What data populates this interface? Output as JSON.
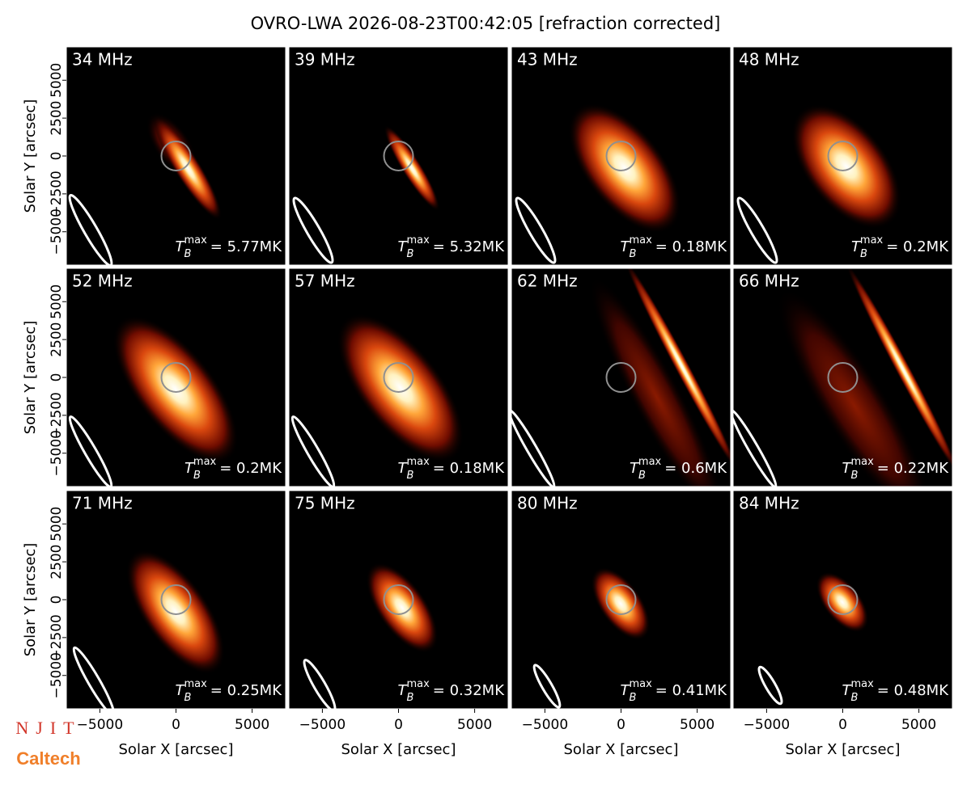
{
  "title": "OVRO-LWA 2026-08-23T00:42:05 [refraction corrected]",
  "logos": {
    "top": "NJIT",
    "bottom": "Caltech"
  },
  "chart_data": [
    {
      "type": "image",
      "title": "34 MHz",
      "annotation": {
        "symbol": "T",
        "subscript": "B",
        "superscript": "max",
        "text": "= 5.77MK"
      },
      "xlim": [
        -7200,
        7200
      ],
      "ylim": [
        -7200,
        7200
      ],
      "ylabel": "Solar Y [arcsec]",
      "yticks": [
        {
          "value": -5000,
          "label": "−5000"
        },
        {
          "value": -2500,
          "label": "−2500"
        },
        0,
        2500,
        5000
      ]
    },
    {
      "type": "image",
      "title": "39 MHz",
      "annotation": {
        "symbol": "T",
        "subscript": "B",
        "superscript": "max",
        "text": "= 5.32MK"
      },
      "xlim": [
        -7200,
        7200
      ],
      "ylim": [
        -7200,
        7200
      ]
    },
    {
      "type": "image",
      "title": "43 MHz",
      "annotation": {
        "symbol": "T",
        "subscript": "B",
        "superscript": "max",
        "text": "= 0.18MK"
      },
      "xlim": [
        -7200,
        7200
      ],
      "ylim": [
        -7200,
        7200
      ]
    },
    {
      "type": "image",
      "title": "48 MHz",
      "annotation": {
        "symbol": "T",
        "subscript": "B",
        "superscript": "max",
        "text": "= 0.2MK"
      },
      "xlim": [
        -7200,
        7200
      ],
      "ylim": [
        -7200,
        7200
      ]
    },
    {
      "type": "image",
      "title": "52 MHz",
      "annotation": {
        "symbol": "T",
        "subscript": "B",
        "superscript": "max",
        "text": "= 0.2MK"
      },
      "xlim": [
        -7200,
        7200
      ],
      "ylim": [
        -7200,
        7200
      ],
      "ylabel": "Solar Y [arcsec]",
      "yticks": [
        {
          "value": -5000,
          "label": "−5000"
        },
        {
          "value": -2500,
          "label": "−2500"
        },
        0,
        2500,
        5000
      ]
    },
    {
      "type": "image",
      "title": "57 MHz",
      "annotation": {
        "symbol": "T",
        "subscript": "B",
        "superscript": "max",
        "text": "= 0.18MK"
      },
      "xlim": [
        -7200,
        7200
      ],
      "ylim": [
        -7200,
        7200
      ]
    },
    {
      "type": "image",
      "title": "62 MHz",
      "annotation": {
        "symbol": "T",
        "subscript": "B",
        "superscript": "max",
        "text": "= 0.6MK"
      },
      "xlim": [
        -7200,
        7200
      ],
      "ylim": [
        -7200,
        7200
      ]
    },
    {
      "type": "image",
      "title": "66 MHz",
      "annotation": {
        "symbol": "T",
        "subscript": "B",
        "superscript": "max",
        "text": "= 0.22MK"
      },
      "xlim": [
        -7200,
        7200
      ],
      "ylim": [
        -7200,
        7200
      ]
    },
    {
      "type": "image",
      "title": "71 MHz",
      "annotation": {
        "symbol": "T",
        "subscript": "B",
        "superscript": "max",
        "text": "= 0.25MK"
      },
      "xlim": [
        -7200,
        7200
      ],
      "ylim": [
        -7200,
        7200
      ],
      "ylabel": "Solar Y [arcsec]",
      "yticks": [
        {
          "value": -5000,
          "label": "−5000"
        },
        {
          "value": -2500,
          "label": "−2500"
        },
        0,
        2500,
        5000
      ],
      "xlabel": "Solar X [arcsec]",
      "xticks": [
        {
          "value": -5000,
          "label": "−5000"
        },
        0,
        5000
      ]
    },
    {
      "type": "image",
      "title": "75 MHz",
      "annotation": {
        "symbol": "T",
        "subscript": "B",
        "superscript": "max",
        "text": "= 0.32MK"
      },
      "xlim": [
        -7200,
        7200
      ],
      "ylim": [
        -7200,
        7200
      ],
      "xlabel": "Solar X [arcsec]",
      "xticks": [
        {
          "value": -5000,
          "label": "−5000"
        },
        0,
        5000
      ]
    },
    {
      "type": "image",
      "title": "80 MHz",
      "annotation": {
        "symbol": "T",
        "subscript": "B",
        "superscript": "max",
        "text": "= 0.41MK"
      },
      "xlim": [
        -7200,
        7200
      ],
      "ylim": [
        -7200,
        7200
      ],
      "xlabel": "Solar X [arcsec]",
      "xticks": [
        {
          "value": -5000,
          "label": "−5000"
        },
        0,
        5000
      ]
    },
    {
      "type": "image",
      "title": "84 MHz",
      "annotation": {
        "symbol": "T",
        "subscript": "B",
        "superscript": "max",
        "text": "= 0.48MK"
      },
      "xlim": [
        -7200,
        7200
      ],
      "ylim": [
        -7200,
        7200
      ],
      "xlabel": "Solar X [arcsec]",
      "xticks": [
        {
          "value": -5000,
          "label": "−5000"
        },
        0,
        5000
      ]
    }
  ]
}
